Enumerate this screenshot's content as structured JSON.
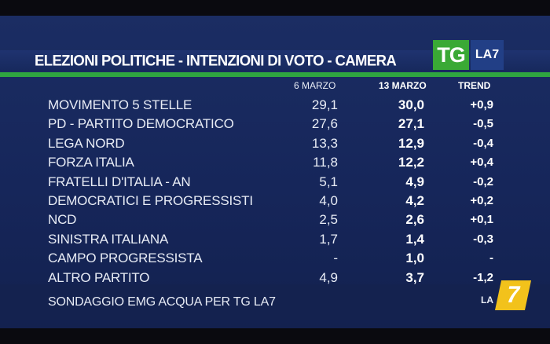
{
  "header": {
    "title": "ELEZIONI POLITICHE - INTENZIONI DI VOTO - CAMERA",
    "logo_tg": "TG",
    "logo_la7": "LA7"
  },
  "columns": {
    "date1": "6 MARZO",
    "date2": "13 MARZO",
    "trend": "TREND"
  },
  "rows": [
    {
      "party": "MOVIMENTO 5 STELLE",
      "v1": "29,1",
      "v2": "30,0",
      "trend": "+0,9"
    },
    {
      "party": "PD - PARTITO DEMOCRATICO",
      "v1": "27,6",
      "v2": "27,1",
      "trend": "-0,5"
    },
    {
      "party": "LEGA NORD",
      "v1": "13,3",
      "v2": "12,9",
      "trend": "-0,4"
    },
    {
      "party": "FORZA ITALIA",
      "v1": "11,8",
      "v2": "12,2",
      "trend": "+0,4"
    },
    {
      "party": "FRATELLI D'ITALIA - AN",
      "v1": "5,1",
      "v2": "4,9",
      "trend": "-0,2"
    },
    {
      "party": "DEMOCRATICI E PROGRESSISTI",
      "v1": "4,0",
      "v2": "4,2",
      "trend": "+0,2"
    },
    {
      "party": "NCD",
      "v1": "2,5",
      "v2": "2,6",
      "trend": "+0,1"
    },
    {
      "party": "SINISTRA ITALIANA",
      "v1": "1,7",
      "v2": "1,4",
      "trend": "-0,3"
    },
    {
      "party": "CAMPO PROGRESSISTA",
      "v1": "-",
      "v2": "1,0",
      "trend": "-"
    },
    {
      "party": "ALTRO PARTITO",
      "v1": "4,9",
      "v2": "3,7",
      "trend": "-1,2"
    }
  ],
  "footer": {
    "source": "SONDAGGIO EMG ACQUA PER TG LA7",
    "corner_la": "LA",
    "corner_7": "7"
  },
  "colors": {
    "background": "#16265a",
    "accent_green": "#2fa640",
    "logo_yellow": "#f2c21b"
  }
}
